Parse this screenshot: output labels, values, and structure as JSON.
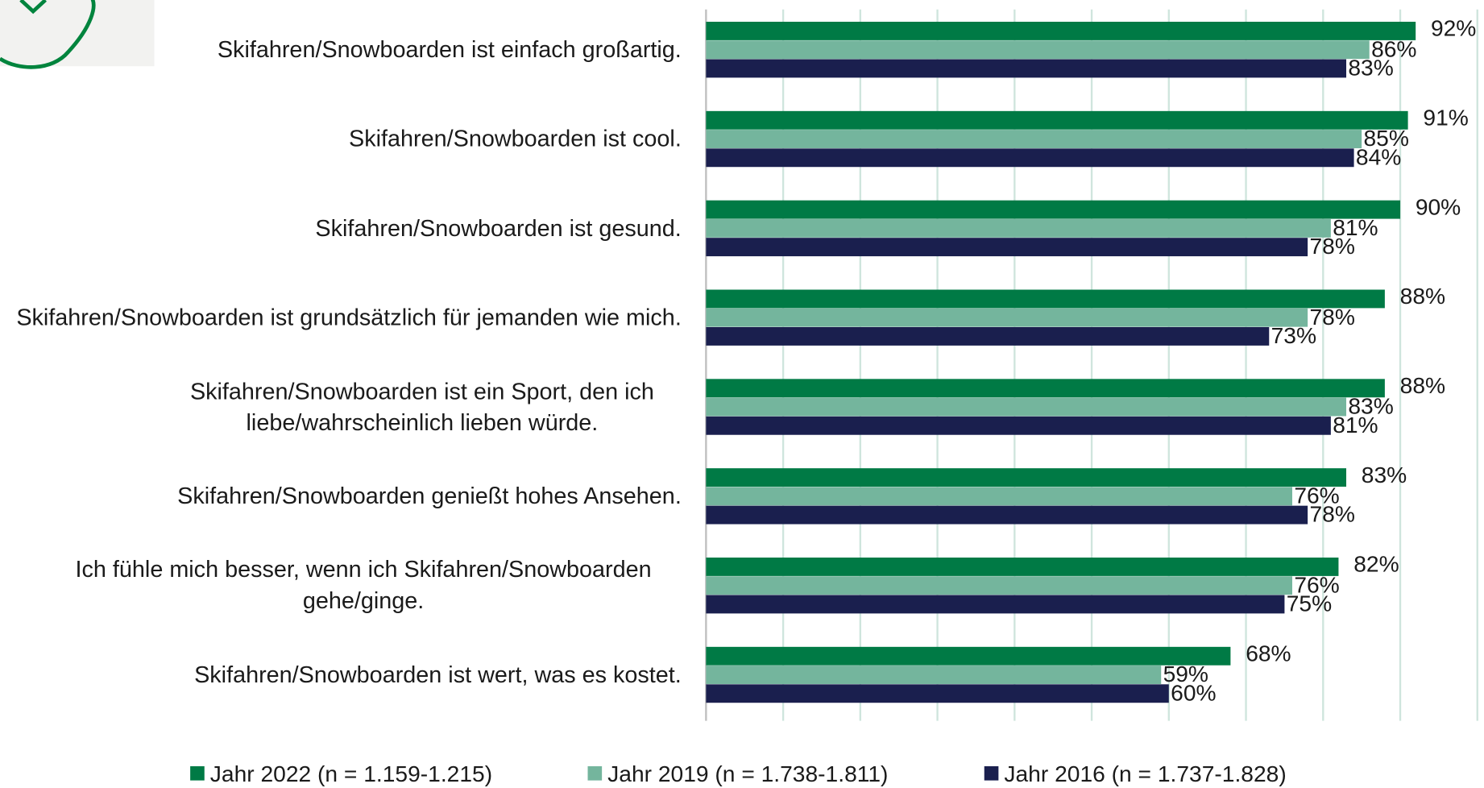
{
  "chart_data": {
    "type": "hbar",
    "categories": [
      "Skifahren/Snowboarden ist einfach großartig.",
      "Skifahren/Snowboarden ist cool.",
      "Skifahren/Snowboarden ist gesund.",
      "Skifahren/Snowboarden ist grundsätzlich für jemanden wie mich.",
      "Skifahren/Snowboarden ist ein Sport, den ich liebe/wahrscheinlich lieben würde.",
      "Skifahren/Snowboarden genießt hohes Ansehen.",
      "Ich fühle mich besser, wenn ich Skifahren/Snowboarden gehe/ginge.",
      "Skifahren/Snowboarden ist wert, was es kostet."
    ],
    "series": [
      {
        "name": "Jahr 2022 (n = 1.159-1.215)",
        "color": "#007a45",
        "values": [
          92,
          91,
          90,
          88,
          88,
          83,
          82,
          68
        ],
        "value_labels": [
          "92%",
          "91%",
          "90%",
          "88%",
          "88%",
          "83%",
          "82%",
          "68%"
        ]
      },
      {
        "name": "Jahr 2019 (n = 1.738-1.811)",
        "color": "#74b59d",
        "values": [
          86,
          85,
          81,
          78,
          83,
          76,
          76,
          59
        ],
        "value_labels": [
          "86%",
          "85%",
          "81%",
          "78%",
          "83%",
          "76%",
          "76%",
          "59%"
        ]
      },
      {
        "name": "Jahr 2016 (n = 1.737-1.828)",
        "color": "#1a1f4e",
        "values": [
          83,
          84,
          78,
          73,
          81,
          78,
          75,
          60
        ],
        "value_labels": [
          "83%",
          "84%",
          "78%",
          "73%",
          "81%",
          "78%",
          "75%",
          "60%"
        ]
      }
    ],
    "xlim": [
      0,
      100
    ],
    "xticks": [
      0,
      10,
      20,
      30,
      40,
      50,
      60,
      70,
      80,
      90,
      100
    ],
    "grid": true,
    "legend": "bottom"
  }
}
